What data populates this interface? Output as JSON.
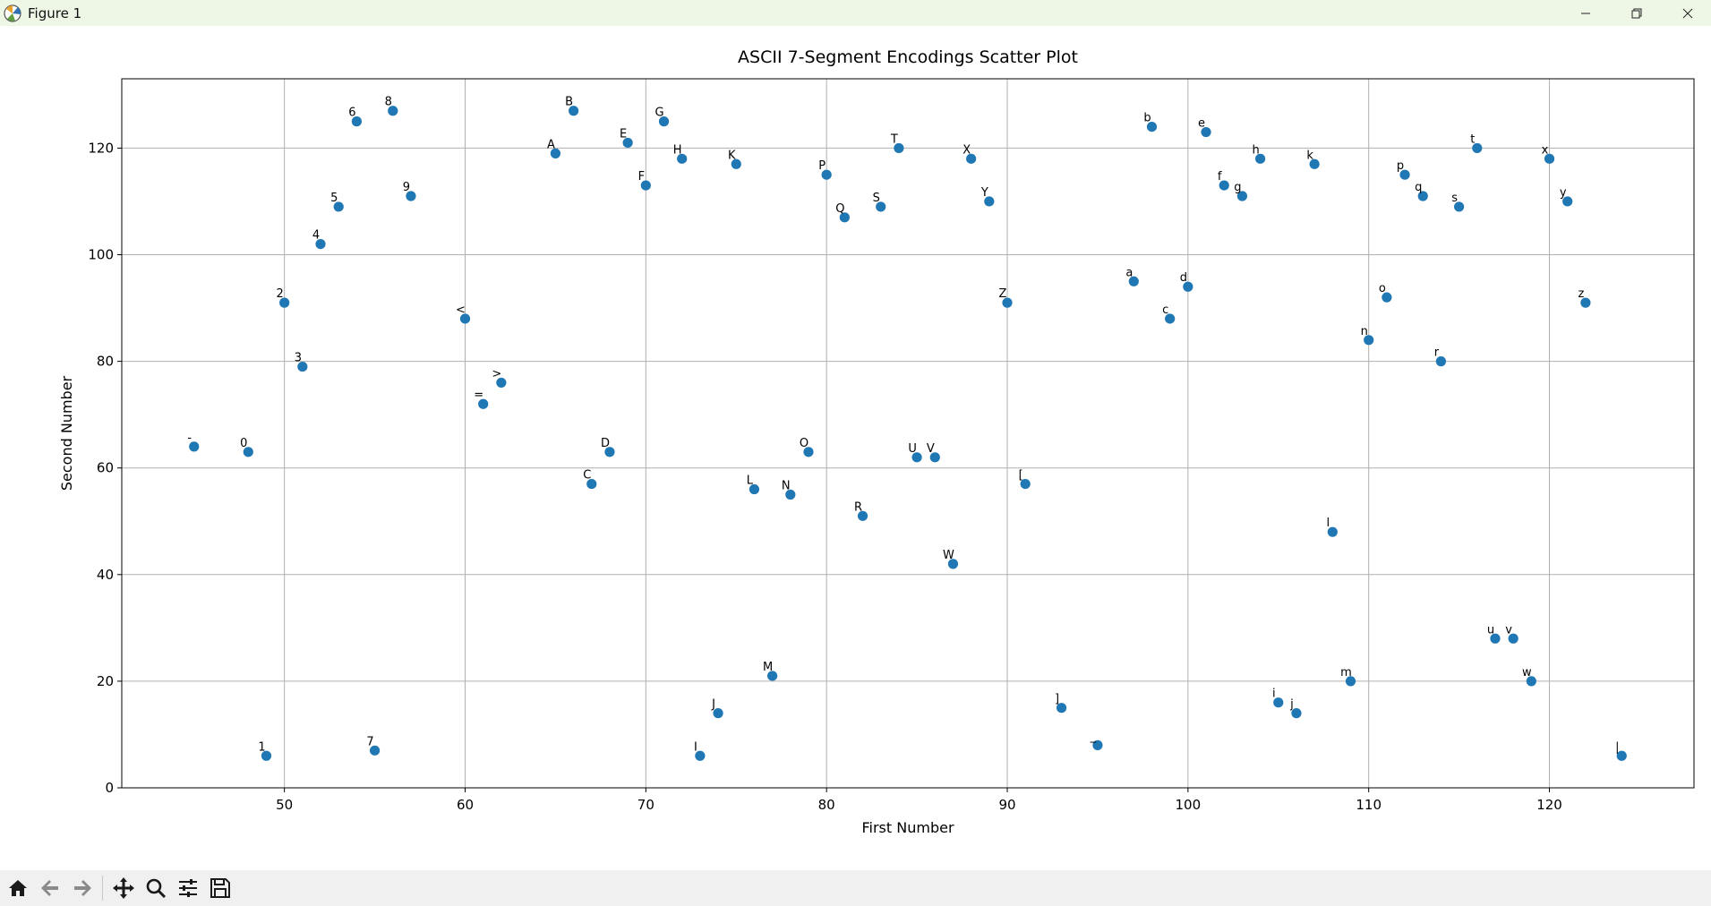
{
  "window": {
    "title": "Figure 1",
    "controls": {
      "minimize": "minimize-icon",
      "maximize": "restore-icon",
      "close": "close-icon"
    }
  },
  "toolbar": {
    "buttons": [
      "home-icon",
      "back-icon",
      "forward-icon",
      "pan-icon",
      "zoom-icon",
      "configure-subplots-icon",
      "save-icon"
    ]
  },
  "colors": {
    "marker": "#1f77b4",
    "grid": "#b0b0b0",
    "titlebar": "#eef6e6",
    "toolbar": "#f0f0f0"
  },
  "chart_data": {
    "type": "scatter",
    "title": "ASCII 7-Segment Encodings Scatter Plot",
    "xlabel": "First Number",
    "ylabel": "Second Number",
    "xlim": [
      41,
      128
    ],
    "ylim": [
      0,
      133
    ],
    "xticks": [
      50,
      60,
      70,
      80,
      90,
      100,
      110,
      120
    ],
    "yticks": [
      0,
      20,
      40,
      60,
      80,
      100,
      120
    ],
    "grid": true,
    "points": [
      {
        "x": 45,
        "y": 64,
        "label": "-"
      },
      {
        "x": 48,
        "y": 63,
        "label": "0"
      },
      {
        "x": 49,
        "y": 6,
        "label": "1"
      },
      {
        "x": 50,
        "y": 91,
        "label": "2"
      },
      {
        "x": 51,
        "y": 79,
        "label": "3"
      },
      {
        "x": 52,
        "y": 102,
        "label": "4"
      },
      {
        "x": 53,
        "y": 109,
        "label": "5"
      },
      {
        "x": 54,
        "y": 125,
        "label": "6"
      },
      {
        "x": 55,
        "y": 7,
        "label": "7"
      },
      {
        "x": 56,
        "y": 127,
        "label": "8"
      },
      {
        "x": 57,
        "y": 111,
        "label": "9"
      },
      {
        "x": 60,
        "y": 88,
        "label": "<"
      },
      {
        "x": 61,
        "y": 72,
        "label": "="
      },
      {
        "x": 62,
        "y": 76,
        "label": ">"
      },
      {
        "x": 65,
        "y": 119,
        "label": "A"
      },
      {
        "x": 66,
        "y": 127,
        "label": "B"
      },
      {
        "x": 67,
        "y": 57,
        "label": "C"
      },
      {
        "x": 68,
        "y": 63,
        "label": "D"
      },
      {
        "x": 69,
        "y": 121,
        "label": "E"
      },
      {
        "x": 70,
        "y": 113,
        "label": "F"
      },
      {
        "x": 71,
        "y": 125,
        "label": "G"
      },
      {
        "x": 72,
        "y": 118,
        "label": "H"
      },
      {
        "x": 73,
        "y": 6,
        "label": "I"
      },
      {
        "x": 74,
        "y": 14,
        "label": "J"
      },
      {
        "x": 75,
        "y": 117,
        "label": "K"
      },
      {
        "x": 76,
        "y": 56,
        "label": "L"
      },
      {
        "x": 77,
        "y": 21,
        "label": "M"
      },
      {
        "x": 78,
        "y": 55,
        "label": "N"
      },
      {
        "x": 79,
        "y": 63,
        "label": "O"
      },
      {
        "x": 80,
        "y": 115,
        "label": "P"
      },
      {
        "x": 81,
        "y": 107,
        "label": "Q"
      },
      {
        "x": 82,
        "y": 51,
        "label": "R"
      },
      {
        "x": 83,
        "y": 109,
        "label": "S"
      },
      {
        "x": 84,
        "y": 120,
        "label": "T"
      },
      {
        "x": 85,
        "y": 62,
        "label": "U"
      },
      {
        "x": 86,
        "y": 62,
        "label": "V"
      },
      {
        "x": 87,
        "y": 42,
        "label": "W"
      },
      {
        "x": 88,
        "y": 118,
        "label": "X"
      },
      {
        "x": 89,
        "y": 110,
        "label": "Y"
      },
      {
        "x": 90,
        "y": 91,
        "label": "Z"
      },
      {
        "x": 91,
        "y": 57,
        "label": "["
      },
      {
        "x": 93,
        "y": 15,
        "label": "]"
      },
      {
        "x": 95,
        "y": 8,
        "label": "_"
      },
      {
        "x": 97,
        "y": 95,
        "label": "a"
      },
      {
        "x": 98,
        "y": 124,
        "label": "b"
      },
      {
        "x": 99,
        "y": 88,
        "label": "c"
      },
      {
        "x": 100,
        "y": 94,
        "label": "d"
      },
      {
        "x": 101,
        "y": 123,
        "label": "e"
      },
      {
        "x": 102,
        "y": 113,
        "label": "f"
      },
      {
        "x": 103,
        "y": 111,
        "label": "g"
      },
      {
        "x": 104,
        "y": 118,
        "label": "h"
      },
      {
        "x": 105,
        "y": 16,
        "label": "i"
      },
      {
        "x": 106,
        "y": 14,
        "label": "j"
      },
      {
        "x": 107,
        "y": 117,
        "label": "k"
      },
      {
        "x": 108,
        "y": 48,
        "label": "l"
      },
      {
        "x": 109,
        "y": 20,
        "label": "m"
      },
      {
        "x": 110,
        "y": 84,
        "label": "n"
      },
      {
        "x": 111,
        "y": 92,
        "label": "o"
      },
      {
        "x": 112,
        "y": 115,
        "label": "p"
      },
      {
        "x": 113,
        "y": 111,
        "label": "q"
      },
      {
        "x": 114,
        "y": 80,
        "label": "r"
      },
      {
        "x": 115,
        "y": 109,
        "label": "s"
      },
      {
        "x": 116,
        "y": 120,
        "label": "t"
      },
      {
        "x": 117,
        "y": 28,
        "label": "u"
      },
      {
        "x": 118,
        "y": 28,
        "label": "v"
      },
      {
        "x": 119,
        "y": 20,
        "label": "w"
      },
      {
        "x": 120,
        "y": 118,
        "label": "x"
      },
      {
        "x": 121,
        "y": 110,
        "label": "y"
      },
      {
        "x": 122,
        "y": 91,
        "label": "z"
      },
      {
        "x": 124,
        "y": 6,
        "label": "|"
      }
    ]
  }
}
